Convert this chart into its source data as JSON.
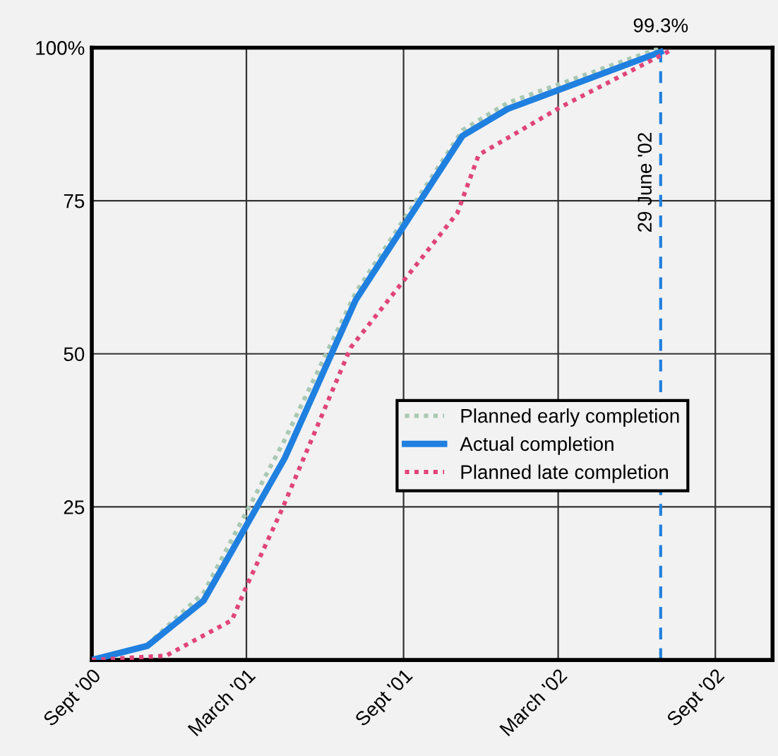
{
  "chart_data": {
    "type": "line",
    "xlim": [
      "2000-09-01",
      "2002-11-07"
    ],
    "xticks": [
      {
        "value": "2000-09-01",
        "label": "Sept '00"
      },
      {
        "value": "2001-03-01",
        "label": "March '01"
      },
      {
        "value": "2001-09-01",
        "label": "Sept '01"
      },
      {
        "value": "2002-03-01",
        "label": "March '02"
      },
      {
        "value": "2002-09-01",
        "label": "Sept '02"
      }
    ],
    "ylim": [
      0,
      100
    ],
    "yticks": [
      {
        "value": 0,
        "label": null
      },
      25,
      50,
      75,
      {
        "value": 100,
        "label": "100%"
      }
    ],
    "grid": true,
    "legend": "center right",
    "series": [
      {
        "name": "Planned early completion",
        "color": "#a8c8b4",
        "line_style": "dotted",
        "x": [
          "2000-09-01",
          "2000-11-05",
          "2001-01-10",
          "2001-04-15",
          "2001-07-07",
          "2001-11-09",
          "2002-01-01",
          "2002-06-29"
        ],
        "values": [
          0,
          2.5,
          11,
          36,
          60,
          86.5,
          91,
          100
        ]
      },
      {
        "name": "Actual completion",
        "color": "#1f80e0",
        "line_style": "solid",
        "x": [
          "2000-09-01",
          "2000-11-05",
          "2001-01-10",
          "2001-04-15",
          "2001-07-07",
          "2001-11-09",
          "2002-01-01",
          "2002-06-29"
        ],
        "values": [
          0,
          2.3,
          9.7,
          33,
          58.8,
          85.6,
          90,
          99.3
        ]
      },
      {
        "name": "Planned late completion",
        "color": "#e0457a",
        "line_style": "dotted",
        "x": [
          "2000-09-01",
          "2000-11-27",
          "2001-02-12",
          "2001-03-01",
          "2001-04-12",
          "2001-07-01",
          "2001-11-03",
          "2001-11-28",
          "2002-03-04",
          "2002-07-10"
        ],
        "values": [
          0,
          0.7,
          6.5,
          12,
          24.7,
          51,
          73,
          82.5,
          90.3,
          99.5
        ]
      }
    ],
    "ref_lines": [
      {
        "axis": "x",
        "value": "2002-06-29",
        "label": "29 June '02",
        "color": "#1f80e0",
        "line_style": "dashed"
      }
    ],
    "annotations": [
      {
        "text": "99.3%",
        "x": "2002-06-29",
        "y": 99.3
      }
    ]
  }
}
